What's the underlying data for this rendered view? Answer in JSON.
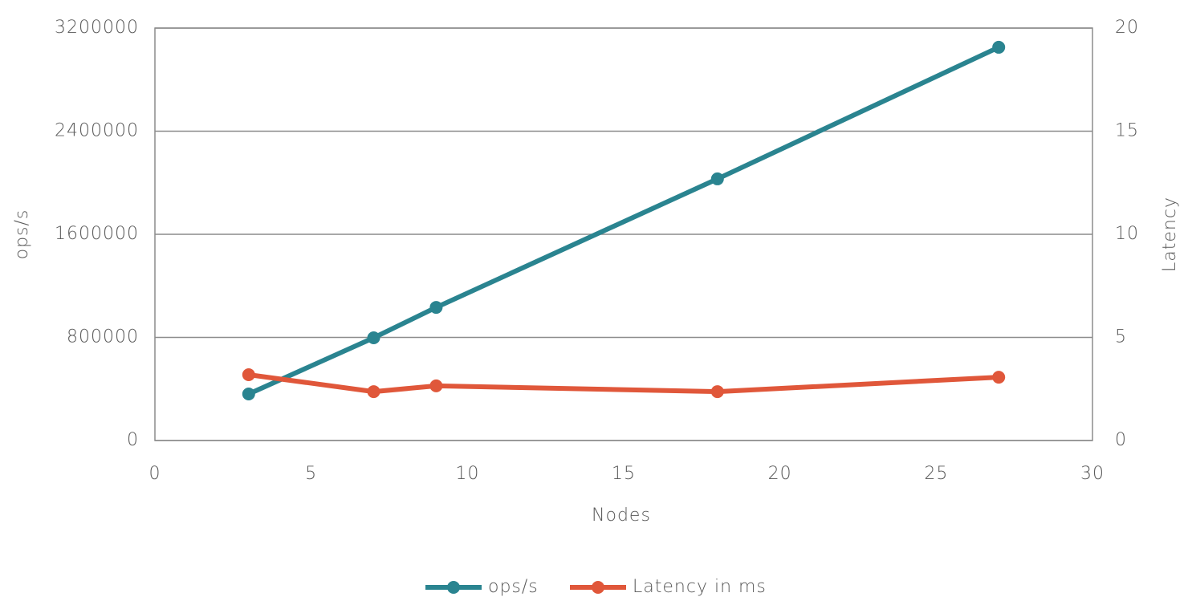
{
  "chart_data": {
    "type": "line",
    "x_label": "Nodes",
    "y_label": "ops/s",
    "y2_label": "Latency",
    "x": [
      3,
      7,
      9,
      18,
      27
    ],
    "series": [
      {
        "name": "ops/s",
        "color": "#2a8490",
        "values": [
          361000,
          797000,
          1033000,
          2030000,
          3051000
        ]
      },
      {
        "name": "Latency in ms",
        "color": "#e0573a",
        "axis": "y2",
        "values": [
          3.19,
          2.37,
          2.65,
          2.37,
          3.07
        ]
      }
    ],
    "xlim": [
      0,
      30
    ],
    "xticks": [
      0,
      5,
      10,
      15,
      20,
      25,
      30
    ],
    "ylim": [
      0,
      3200000
    ],
    "yticks": [
      0,
      800000,
      1600000,
      2400000,
      3200000
    ],
    "y2lim": [
      0,
      20
    ],
    "y2ticks": [
      0,
      5,
      10,
      15,
      20
    ],
    "grid": true,
    "legend": "bottom"
  }
}
